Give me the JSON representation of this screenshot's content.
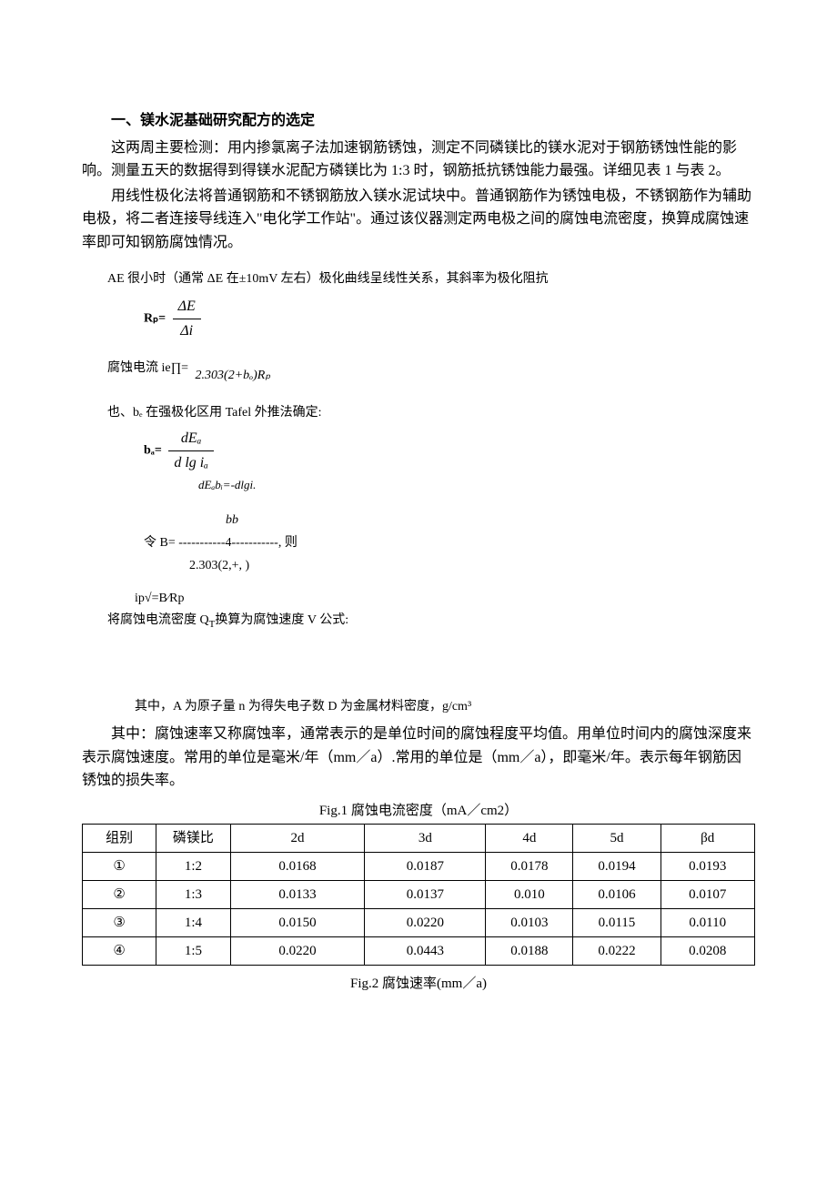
{
  "heading": "一、镁水泥基础研究配方的选定",
  "p1": "这两周主要检测：用内掺氯离子法加速钢筋锈蚀，测定不同磷镁比的镁水泥对于钢筋锈蚀性能的影响。测量五天的数据得到得镁水泥配方磷镁比为 1:3 时，钢筋抵抗锈蚀能力最强。详细见表 1 与表 2。",
  "p2": "用线性极化法将普通钢筋和不锈钢筋放入镁水泥试块中。普通钢筋作为锈蚀电极，不锈钢筋作为辅助电极，将二者连接导线连入\"电化学工作站\"。通过该仪器测定两电极之间的腐蚀电流密度，换算成腐蚀速率即可知钢筋腐蚀情况。",
  "sm1": "AE 很小时（通常 ΔE 在±10mV 左右）极化曲线呈线性关系，其斜率为极化阻抗",
  "eq_Rp_label": "Rₚ=",
  "eq_Rp_num": "ΔE",
  "eq_Rp_den": "Δi",
  "sm2a": "腐蚀电流 ie∏=",
  "sm2b": "2.303(2+bₒ)Rₚ",
  "sm3": "也、bₑ 在强极化区用 Tafel 外推法确定:",
  "eq_ba_label": "bₐ=",
  "eq_ba_num": "dEₐ",
  "eq_ba_den": "d lg iₐ",
  "eq_ba_extra": "dEₐbᵢ=-dlgi.",
  "eq_B_top": "bb",
  "eq_B_prefix": "令 B=",
  "eq_B_mid": "-----------4-----------",
  "eq_B_suffix": ", 则",
  "eq_B_bot": "2.303(2,+, )",
  "eq_ip": "ip√=B⁄Rp",
  "sm4": "将腐蚀电流密度 Q",
  "sm4_sub": "T",
  "sm4_after": "换算为腐蚀速度 V 公式:",
  "sm5": "其中，A 为原子量 n 为得失电子数 D 为金属材料密度，g/cm³",
  "p3": "其中：腐蚀速率又称腐蚀率，通常表示的是单位时间的腐蚀程度平均值。用单位时间内的腐蚀深度来表示腐蚀速度。常用的单位是毫米/年（mm／a）.常用的单位是（mm／a），即毫米/年。表示每年钢筋因锈蚀的损失率。",
  "table1": {
    "caption": "Fig.1 腐蚀电流密度（mA／cm2）",
    "headers": [
      "组别",
      "磷镁比",
      "2d",
      "3d",
      "4d",
      "5d",
      "βd"
    ],
    "col_widths": [
      "11%",
      "11%",
      "20%",
      "18%",
      "13%",
      "13%",
      "14%"
    ],
    "rows": [
      [
        "①",
        "1:2",
        "0.0168",
        "0.0187",
        "0.0178",
        "0.0194",
        "0.0193"
      ],
      [
        "②",
        "1:3",
        "0.0133",
        "0.0137",
        "0.010",
        "0.0106",
        "0.0107"
      ],
      [
        "③",
        "1:4",
        "0.0150",
        "0.0220",
        "0.0103",
        "0.0115",
        "0.0110"
      ],
      [
        "④",
        "1:5",
        "0.0220",
        "0.0443",
        "0.0188",
        "0.0222",
        "0.0208"
      ]
    ]
  },
  "caption2": "Fig.2 腐蚀速率(mm／a)"
}
